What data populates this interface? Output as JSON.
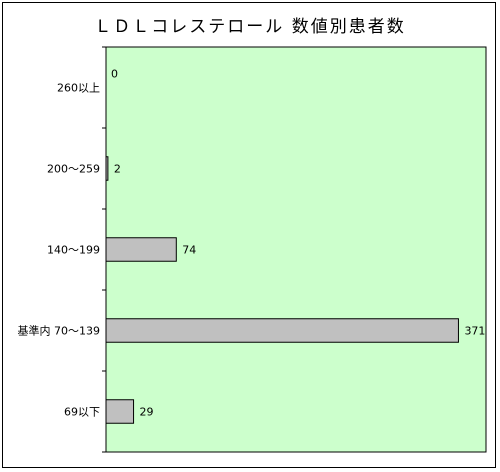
{
  "chart_data": {
    "type": "bar",
    "orientation": "horizontal",
    "title": "ＬＤＬコレステロール 数値別患者数",
    "categories": [
      "260以上",
      "200～259",
      "140～199",
      "基準内 70～139",
      "69以下"
    ],
    "values": [
      0,
      2,
      74,
      371,
      29
    ],
    "xlim": [
      0,
      400
    ],
    "xlabel": "",
    "ylabel": "",
    "grid": false,
    "legend": "none",
    "data_labels": true,
    "colors": {
      "plot_background": "#ccffcc",
      "bar_fill": "#c0c0c0",
      "bar_stroke": "#000000",
      "frame": "#000000"
    }
  }
}
